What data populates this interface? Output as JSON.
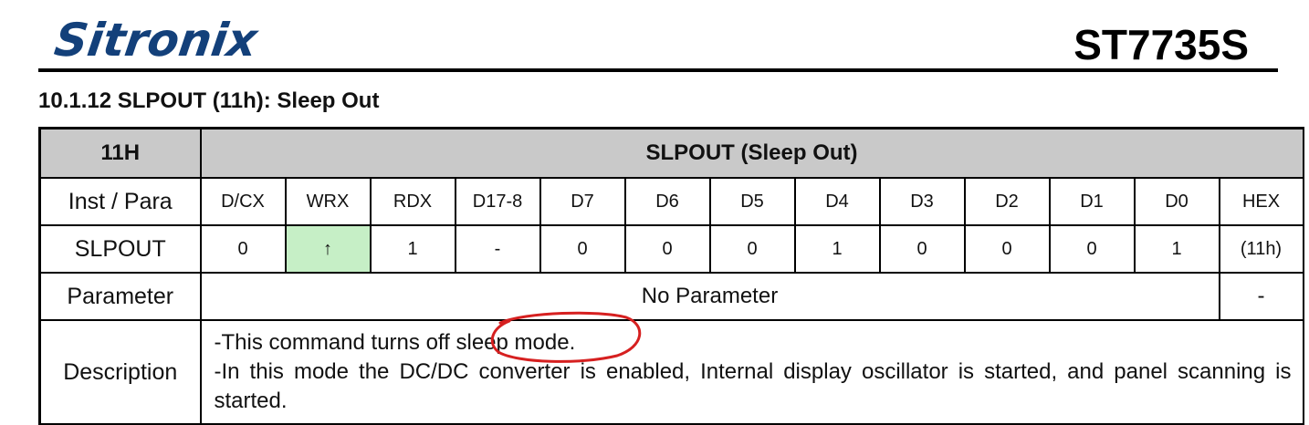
{
  "header": {
    "brand": "Sitronix",
    "part_number": "ST7735S"
  },
  "section": {
    "title": "10.1.12 SLPOUT (11h): Sleep Out"
  },
  "table": {
    "code": "11H",
    "command_title": "SLPOUT (Sleep Out)",
    "columns_label": "Inst / Para",
    "columns": [
      "D/CX",
      "WRX",
      "RDX",
      "D17-8",
      "D7",
      "D6",
      "D5",
      "D4",
      "D3",
      "D2",
      "D1",
      "D0",
      "HEX"
    ],
    "command_label": "SLPOUT",
    "values": [
      "0",
      "↑",
      "1",
      "-",
      "0",
      "0",
      "0",
      "1",
      "0",
      "0",
      "0",
      "1",
      "(11h)"
    ],
    "parameter_label": "Parameter",
    "parameter_value": "No Parameter",
    "parameter_hex": "-",
    "description_label": "Description",
    "description_line1": "-This command turns off sleep mode.",
    "description_line2": "-In this mode the DC/DC converter is enabled, Internal display oscillator is started, and panel scanning is started."
  },
  "colors": {
    "brand_blue": "#13407a",
    "header_gray": "#c9c9c9",
    "highlight_green": "#c6efc6",
    "annotation_red": "#d62020"
  }
}
